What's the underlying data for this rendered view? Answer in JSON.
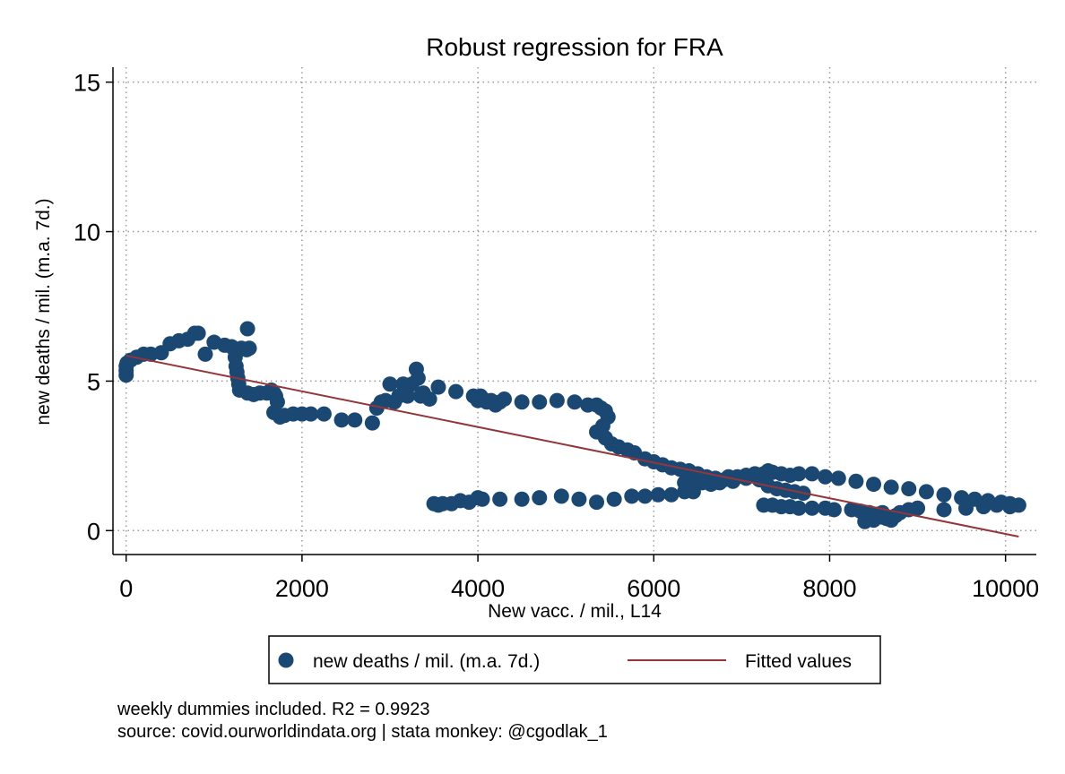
{
  "chart_data": {
    "type": "scatter",
    "title": "Robust regression for FRA",
    "xlabel": "New vacc. / mil., L14",
    "ylabel": "new deaths / mil. (m.a. 7d.)",
    "xlim": [
      -150,
      10350
    ],
    "ylim": [
      -0.8,
      15.5
    ],
    "xticks": [
      0,
      2000,
      4000,
      6000,
      8000,
      10000
    ],
    "xtick_labels": [
      "0",
      "2000",
      "4000",
      "6000",
      "8000",
      "10000"
    ],
    "yticks": [
      0,
      5,
      10,
      15
    ],
    "ytick_labels": [
      "0",
      "5",
      "10",
      "15"
    ],
    "grid": true,
    "legend_position": "bottom",
    "colors": {
      "points": "#1b4872",
      "fit": "#93363b"
    },
    "series": [
      {
        "name": "new deaths / mil. (m.a. 7d.)",
        "kind": "scatter",
        "points": [
          [
            0,
            5.2
          ],
          [
            0,
            5.35
          ],
          [
            0,
            5.5
          ],
          [
            10,
            5.6
          ],
          [
            50,
            5.7
          ],
          [
            120,
            5.8
          ],
          [
            200,
            5.9
          ],
          [
            280,
            5.9
          ],
          [
            400,
            5.95
          ],
          [
            500,
            6.25
          ],
          [
            600,
            6.35
          ],
          [
            700,
            6.4
          ],
          [
            780,
            6.6
          ],
          [
            820,
            6.6
          ],
          [
            900,
            5.9
          ],
          [
            1000,
            6.3
          ],
          [
            1120,
            6.2
          ],
          [
            1200,
            6.15
          ],
          [
            1220,
            6.1
          ],
          [
            1240,
            5.8
          ],
          [
            1250,
            5.5
          ],
          [
            1260,
            5.3
          ],
          [
            1270,
            5.1
          ],
          [
            1280,
            4.9
          ],
          [
            1290,
            4.7
          ],
          [
            1310,
            6.1
          ],
          [
            1370,
            6.05
          ],
          [
            1380,
            6.75
          ],
          [
            1400,
            6.1
          ],
          [
            1380,
            4.6
          ],
          [
            1450,
            4.55
          ],
          [
            1520,
            4.6
          ],
          [
            1600,
            4.6
          ],
          [
            1650,
            4.7
          ],
          [
            1680,
            4.6
          ],
          [
            1700,
            4.5
          ],
          [
            1720,
            4.3
          ],
          [
            1680,
            3.95
          ],
          [
            1750,
            3.8
          ],
          [
            1800,
            3.85
          ],
          [
            1900,
            3.9
          ],
          [
            2000,
            3.9
          ],
          [
            2100,
            3.9
          ],
          [
            2250,
            3.9
          ],
          [
            2450,
            3.7
          ],
          [
            2600,
            3.7
          ],
          [
            2800,
            3.6
          ],
          [
            2850,
            4.1
          ],
          [
            2900,
            4.3
          ],
          [
            2950,
            4.35
          ],
          [
            3000,
            4.9
          ],
          [
            3050,
            4.3
          ],
          [
            3100,
            4.5
          ],
          [
            3150,
            4.9
          ],
          [
            3200,
            4.5
          ],
          [
            3250,
            4.9
          ],
          [
            3300,
            5.4
          ],
          [
            3320,
            5.1
          ],
          [
            3350,
            4.5
          ],
          [
            3380,
            4.6
          ],
          [
            3450,
            4.4
          ],
          [
            3500,
            0.9
          ],
          [
            3550,
            0.85
          ],
          [
            3600,
            0.9
          ],
          [
            3700,
            0.9
          ],
          [
            3800,
            1.0
          ],
          [
            3900,
            0.95
          ],
          [
            4000,
            1.1
          ],
          [
            4050,
            1.05
          ],
          [
            3550,
            4.8
          ],
          [
            3750,
            4.65
          ],
          [
            3950,
            4.5
          ],
          [
            4000,
            4.35
          ],
          [
            4030,
            4.5
          ],
          [
            4060,
            4.4
          ],
          [
            4100,
            4.3
          ],
          [
            4150,
            4.35
          ],
          [
            4200,
            4.2
          ],
          [
            4250,
            4.3
          ],
          [
            4300,
            4.4
          ],
          [
            4500,
            4.3
          ],
          [
            4700,
            4.3
          ],
          [
            4900,
            4.35
          ],
          [
            5100,
            4.3
          ],
          [
            5250,
            4.2
          ],
          [
            5350,
            4.2
          ],
          [
            5400,
            4.1
          ],
          [
            5450,
            4.0
          ],
          [
            5480,
            3.8
          ],
          [
            5420,
            3.5
          ],
          [
            5350,
            3.3
          ],
          [
            5450,
            3.1
          ],
          [
            5520,
            2.9
          ],
          [
            5600,
            2.8
          ],
          [
            5700,
            2.7
          ],
          [
            5780,
            2.6
          ],
          [
            5900,
            2.4
          ],
          [
            6000,
            2.3
          ],
          [
            6100,
            2.2
          ],
          [
            6200,
            2.1
          ],
          [
            6300,
            2.05
          ],
          [
            6400,
            2.0
          ],
          [
            6500,
            1.9
          ],
          [
            6600,
            1.8
          ],
          [
            6700,
            1.75
          ],
          [
            6800,
            1.7
          ],
          [
            6850,
            1.8
          ],
          [
            6950,
            1.8
          ],
          [
            7050,
            1.85
          ],
          [
            7150,
            1.9
          ],
          [
            7250,
            1.9
          ],
          [
            7300,
            2.0
          ],
          [
            7350,
            1.95
          ],
          [
            7450,
            1.9
          ],
          [
            7550,
            1.85
          ],
          [
            7650,
            1.9
          ],
          [
            7800,
            1.9
          ],
          [
            7950,
            1.8
          ],
          [
            8100,
            1.75
          ],
          [
            8300,
            1.65
          ],
          [
            8500,
            1.55
          ],
          [
            8700,
            1.45
          ],
          [
            8900,
            1.4
          ],
          [
            9100,
            1.3
          ],
          [
            9300,
            1.2
          ],
          [
            9500,
            1.1
          ],
          [
            9650,
            1.05
          ],
          [
            9800,
            1.0
          ],
          [
            9950,
            0.95
          ],
          [
            10050,
            0.9
          ],
          [
            10150,
            0.85
          ],
          [
            4250,
            1.05
          ],
          [
            4500,
            1.05
          ],
          [
            4700,
            1.1
          ],
          [
            4950,
            1.15
          ],
          [
            5150,
            1.05
          ],
          [
            5350,
            0.95
          ],
          [
            5550,
            1.05
          ],
          [
            5750,
            1.15
          ],
          [
            5900,
            1.15
          ],
          [
            6050,
            1.2
          ],
          [
            6200,
            1.2
          ],
          [
            6350,
            1.3
          ],
          [
            6450,
            1.3
          ],
          [
            6350,
            1.6
          ],
          [
            6450,
            1.55
          ],
          [
            6550,
            1.6
          ],
          [
            6650,
            1.55
          ],
          [
            6750,
            1.6
          ],
          [
            6900,
            1.65
          ],
          [
            7050,
            1.75
          ],
          [
            7200,
            1.7
          ],
          [
            7300,
            1.5
          ],
          [
            7400,
            1.4
          ],
          [
            7500,
            1.35
          ],
          [
            7600,
            1.3
          ],
          [
            7700,
            1.25
          ],
          [
            7250,
            0.85
          ],
          [
            7350,
            0.85
          ],
          [
            7450,
            0.8
          ],
          [
            7550,
            0.8
          ],
          [
            7650,
            0.75
          ],
          [
            7800,
            0.75
          ],
          [
            7950,
            0.75
          ],
          [
            8050,
            0.7
          ],
          [
            8250,
            0.7
          ],
          [
            8350,
            0.65
          ],
          [
            8450,
            0.6
          ],
          [
            8550,
            0.55
          ],
          [
            8600,
            0.45
          ],
          [
            8650,
            0.4
          ],
          [
            8700,
            0.35
          ],
          [
            8750,
            0.5
          ],
          [
            8800,
            0.6
          ],
          [
            8900,
            0.7
          ],
          [
            8500,
            0.35
          ],
          [
            8400,
            0.3
          ],
          [
            8600,
            0.6
          ],
          [
            9000,
            0.75
          ],
          [
            9300,
            0.7
          ],
          [
            9550,
            0.75
          ],
          [
            9750,
            0.8
          ],
          [
            9900,
            0.85
          ],
          [
            10050,
            0.8
          ]
        ]
      },
      {
        "name": "Fitted values",
        "kind": "line",
        "points": [
          [
            0,
            5.85
          ],
          [
            10150,
            -0.2
          ]
        ]
      }
    ],
    "legend": [
      {
        "label": "new deaths / mil. (m.a. 7d.)",
        "symbol": "marker"
      },
      {
        "label": "Fitted values",
        "symbol": "line"
      }
    ],
    "notes": [
      "weekly dummies included. R2 = 0.9923",
      "source: covid.ourworldindata.org | stata monkey: @cgodlak_1"
    ]
  }
}
